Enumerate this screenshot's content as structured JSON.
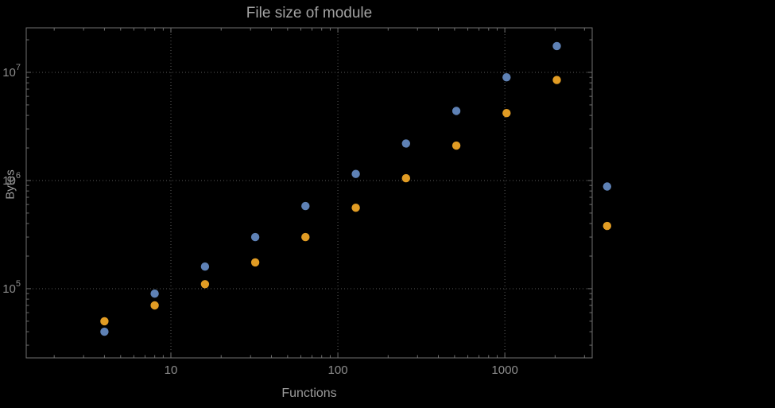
{
  "chart_data": {
    "type": "scatter",
    "title": "File size of module",
    "xlabel": "Functions",
    "ylabel": "Bytes",
    "x_scale": "log",
    "y_scale": "log",
    "xlim": [
      1.36,
      3335
    ],
    "ylim": [
      22900,
      25800000
    ],
    "x_major_ticks": [
      10,
      100,
      1000
    ],
    "x_tick_labels": [
      "10",
      "100",
      "1000"
    ],
    "y_major_ticks": [
      100000,
      1000000,
      10000000
    ],
    "y_tick_exponents": [
      5,
      6,
      7
    ],
    "grid": "dotted",
    "legend": "none",
    "background": "#000000",
    "x": [
      4,
      8,
      16,
      32,
      64,
      128,
      256,
      512,
      1024,
      2048,
      4096
    ],
    "series": [
      {
        "name": "blue",
        "color": "#5e81b5",
        "values": [
          40000,
          90000,
          160000,
          300000,
          580000,
          1150000,
          2200000,
          4400000,
          9000000,
          17500000,
          880000
        ]
      },
      {
        "name": "orange",
        "color": "#e19c24",
        "values": [
          50000,
          70000,
          110000,
          175000,
          300000,
          560000,
          1050000,
          2100000,
          4200000,
          8500000,
          380000
        ]
      }
    ]
  }
}
